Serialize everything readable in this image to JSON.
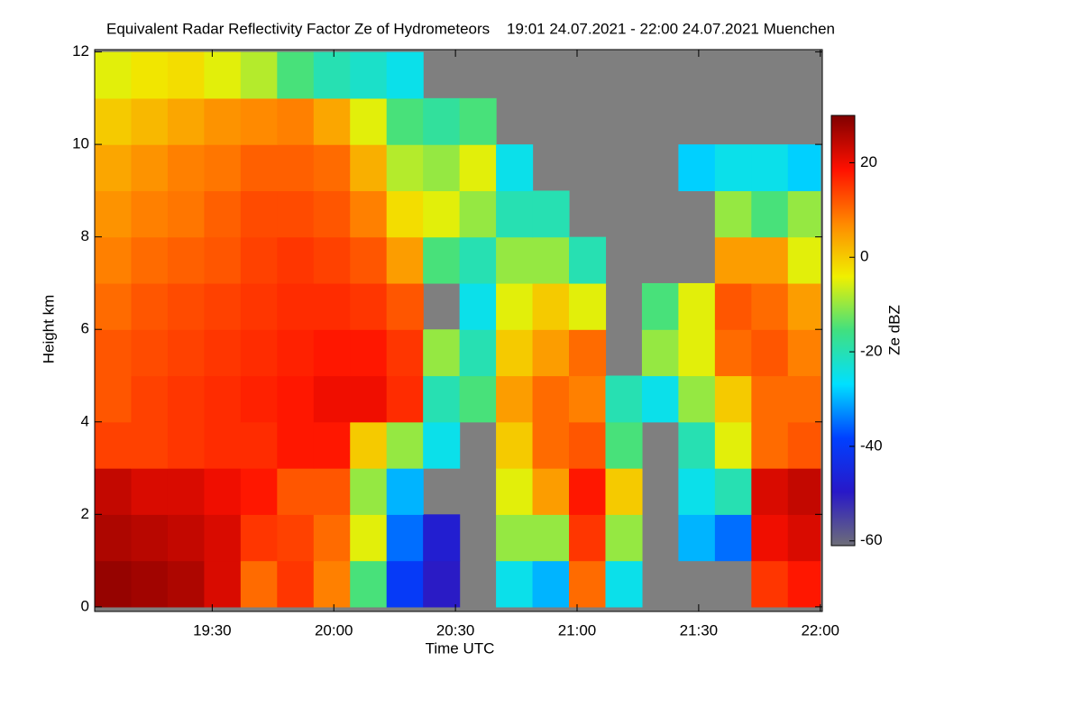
{
  "chart_data": {
    "type": "heatmap",
    "title": "Equivalent Radar Reflectivity Factor Ze of Hydrometeors    19:01 24.07.2021 - 22:00 24.07.2021 Muenchen",
    "x_label": "Time UTC",
    "y_label": "Height km",
    "colorbar_label": "Ze dBZ",
    "xbins": [
      1141,
      1150,
      1159,
      1168,
      1177,
      1186,
      1195,
      1204,
      1213,
      1222,
      1231,
      1240,
      1249,
      1258,
      1267,
      1276,
      1285,
      1294,
      1303,
      1312,
      1320
    ],
    "ybins": [
      0,
      1,
      2,
      3,
      4,
      5,
      6,
      7,
      8,
      9,
      10,
      11,
      12
    ],
    "values": [
      [
        28,
        27,
        26,
        22,
        10,
        15,
        8,
        -15,
        -40,
        -50,
        null,
        -25,
        -30,
        10,
        -25,
        null,
        null,
        null,
        15,
        18
      ],
      [
        26,
        25,
        24,
        22,
        15,
        14,
        10,
        -5,
        -35,
        -48,
        null,
        -10,
        -10,
        15,
        -10,
        null,
        -30,
        -35,
        20,
        22
      ],
      [
        24,
        22,
        22,
        20,
        18,
        12,
        12,
        -10,
        -30,
        null,
        null,
        -5,
        5,
        18,
        0,
        null,
        -25,
        -20,
        22,
        24
      ],
      [
        14,
        14,
        15,
        16,
        16,
        18,
        18,
        0,
        -10,
        -25,
        null,
        0,
        10,
        12,
        -15,
        null,
        -20,
        -5,
        10,
        12
      ],
      [
        12,
        14,
        15,
        16,
        17,
        18,
        20,
        20,
        16,
        -20,
        -15,
        5,
        10,
        8,
        -20,
        -25,
        -10,
        0,
        10,
        10
      ],
      [
        12,
        13,
        14,
        15,
        16,
        17,
        18,
        18,
        15,
        -10,
        -20,
        0,
        5,
        10,
        null,
        -10,
        -5,
        10,
        12,
        8
      ],
      [
        10,
        12,
        13,
        14,
        15,
        16,
        16,
        15,
        12,
        null,
        -25,
        -5,
        0,
        -5,
        null,
        -15,
        -5,
        12,
        10,
        5
      ],
      [
        8,
        10,
        11,
        12,
        14,
        15,
        14,
        12,
        5,
        -15,
        -20,
        -10,
        -10,
        -20,
        null,
        null,
        null,
        5,
        5,
        -5
      ],
      [
        6,
        8,
        9,
        11,
        13,
        13,
        12,
        8,
        -2,
        -5,
        -10,
        -20,
        -20,
        null,
        null,
        null,
        null,
        -10,
        -15,
        -10
      ],
      [
        4,
        6,
        8,
        9,
        11,
        11,
        10,
        3,
        -8,
        -10,
        -5,
        -25,
        null,
        null,
        null,
        null,
        -28,
        -25,
        -25,
        -28
      ],
      [
        0,
        2,
        4,
        6,
        7,
        8,
        4,
        -5,
        -15,
        -18,
        -15,
        null,
        null,
        null,
        null,
        null,
        null,
        null,
        null,
        null
      ],
      [
        -5,
        -3,
        -2,
        -5,
        -8,
        -15,
        -20,
        -22,
        -25,
        null,
        null,
        null,
        null,
        null,
        null,
        null,
        null,
        null,
        null,
        null
      ]
    ],
    "xlim": [
      1141,
      1320.5
    ],
    "ylim": [
      -0.1,
      12.05
    ],
    "zlim": [
      -61,
      30
    ],
    "xticks": [
      {
        "value": 1170,
        "label": "19:30"
      },
      {
        "value": 1200,
        "label": "20:00"
      },
      {
        "value": 1230,
        "label": "20:30"
      },
      {
        "value": 1260,
        "label": "21:00"
      },
      {
        "value": 1290,
        "label": "21:30"
      },
      {
        "value": 1320,
        "label": "22:00"
      }
    ],
    "yticks": [
      0,
      2,
      4,
      6,
      8,
      10,
      12
    ],
    "zticks": [
      20,
      0,
      -20,
      -40,
      -60
    ],
    "colorscale": [
      "#6e6e78",
      "#2818c8",
      "#0040ff",
      "#00e0ff",
      "#40e080",
      "#f0f000",
      "#ff8800",
      "#ff1000",
      "#800000"
    ],
    "background": "#7f7f7f"
  }
}
